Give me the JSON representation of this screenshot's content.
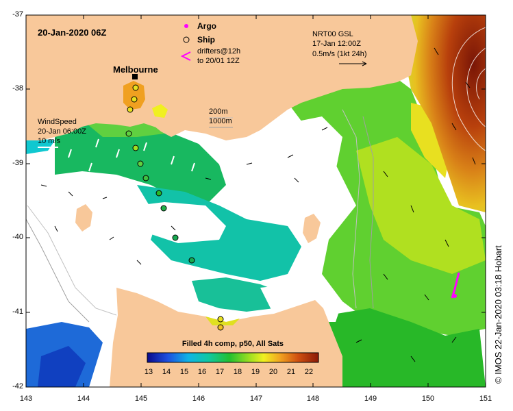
{
  "header": {
    "date_label": "20-Jan-2020 06Z",
    "city_label": "Melbourne",
    "credit": "© IMOS 22-Jan-2020 03:18 Hobart"
  },
  "legend": {
    "argo": "Argo",
    "ship": "Ship",
    "drifters_line1": "drifters@12h",
    "drifters_line2": "to 20/01 12Z",
    "argo_color": "#ff00ff",
    "drifter_color": "#ff00ff"
  },
  "current_ref": {
    "line1": "NRT00 GSL",
    "line2": "17-Jan 12:00Z",
    "line3": "0.5m/s (1kt 24h)"
  },
  "wind_ref": {
    "line1": "WindSpeed",
    "line2": "20-Jan 06:00Z",
    "line3": "10 m/s"
  },
  "depth_ref": {
    "c200": "200m",
    "c1000": "1000m"
  },
  "colorbar": {
    "title": "Filled 4h comp, p50, All Sats",
    "ticks": [
      "13",
      "14",
      "15",
      "16",
      "17",
      "18",
      "19",
      "20",
      "21",
      "22"
    ]
  },
  "axes": {
    "lon_ticks": [
      "143",
      "144",
      "145",
      "146",
      "147",
      "148",
      "149",
      "150",
      "151"
    ],
    "lat_ticks": [
      "-37",
      "-38",
      "-39",
      "-40",
      "-41",
      "-42"
    ]
  },
  "colors": {
    "land": "#f8c89a",
    "sst_cold": "#0a2aa0",
    "sst_warm": "#8a1a08"
  }
}
